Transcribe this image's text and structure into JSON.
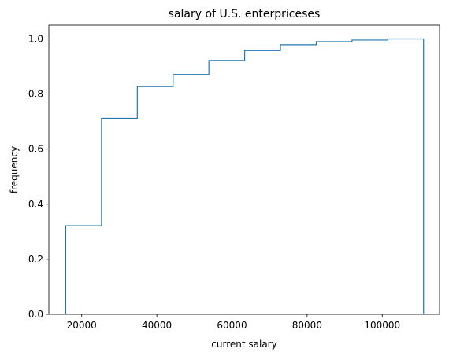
{
  "chart_data": {
    "type": "step",
    "title": "salary of U.S. enterpriceses",
    "xlabel": "current salary",
    "ylabel": "frequency",
    "xlim": [
      11250,
      115250
    ],
    "ylim": [
      0,
      1.05
    ],
    "xticks": [
      20000,
      40000,
      60000,
      80000,
      100000
    ],
    "xtick_labels": [
      "20000",
      "40000",
      "60000",
      "80000",
      "100000"
    ],
    "yticks": [
      0.0,
      0.2,
      0.4,
      0.6,
      0.8,
      1.0
    ],
    "ytick_labels": [
      "0.0",
      "0.2",
      "0.4",
      "0.6",
      "0.8",
      "1.0"
    ],
    "bin_edges": [
      15750,
      25275,
      34800,
      44325,
      53850,
      63375,
      72900,
      82425,
      91950,
      101475,
      111000
    ],
    "cumulative_frequency": [
      0.322,
      0.712,
      0.827,
      0.871,
      0.922,
      0.958,
      0.979,
      0.99,
      0.996,
      1.0
    ],
    "grid": false,
    "line_color": "#1f77b4"
  }
}
